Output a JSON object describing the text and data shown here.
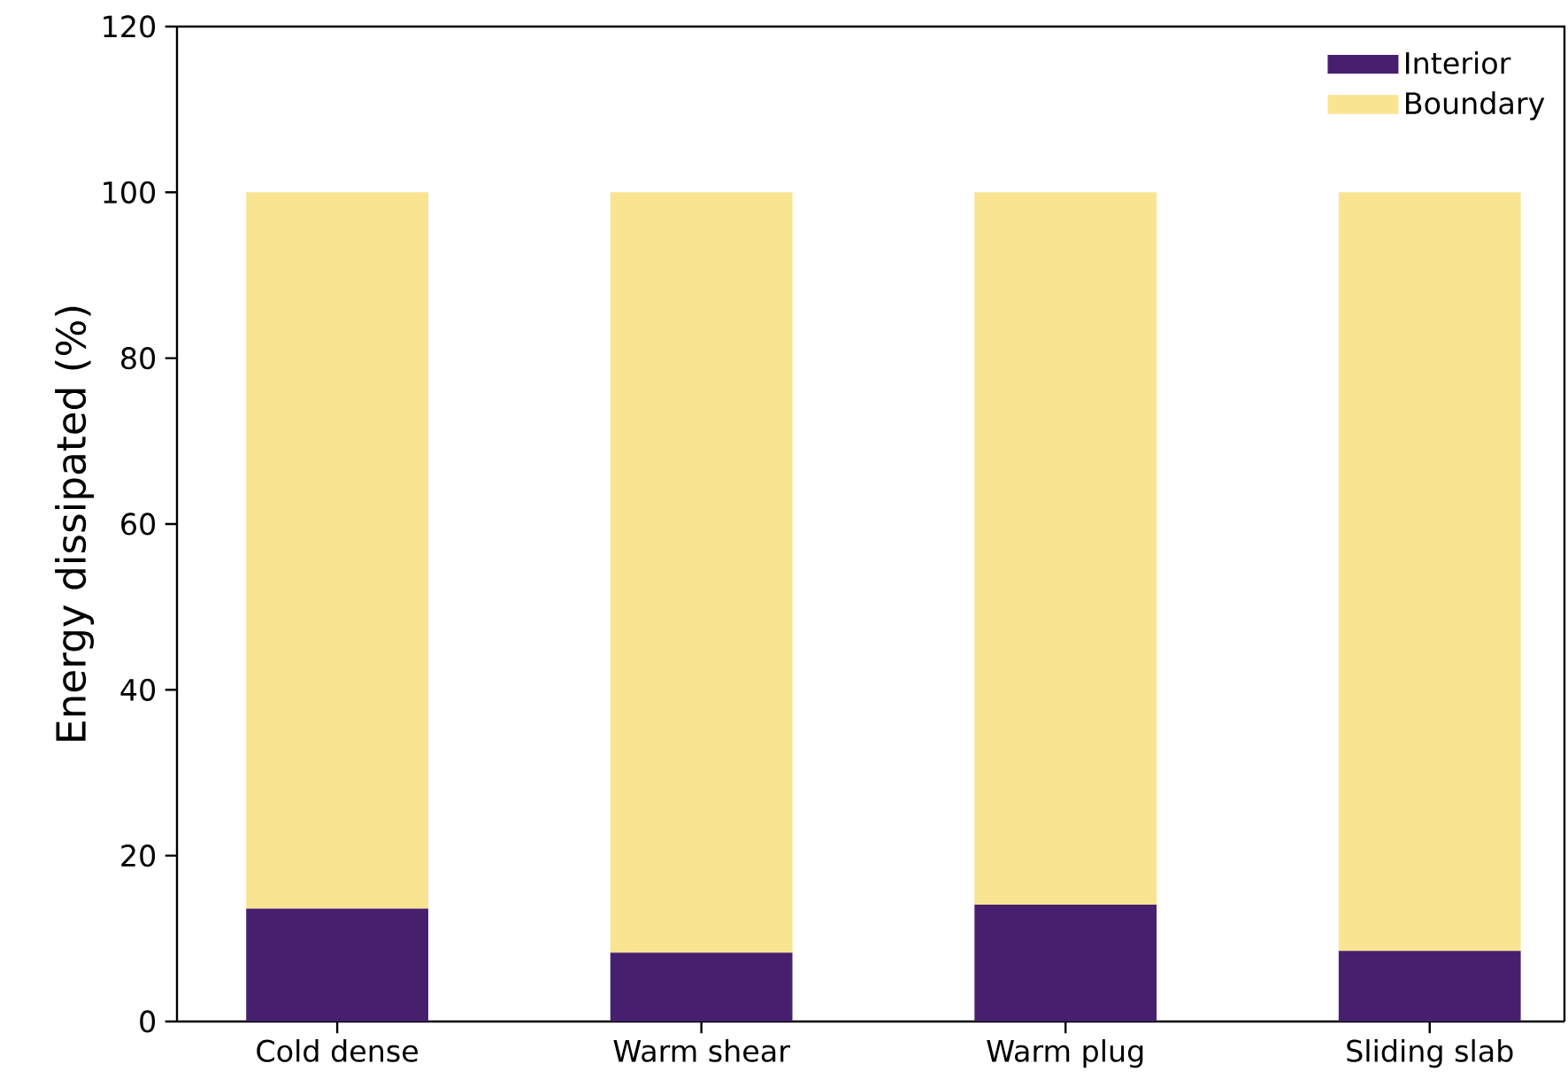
{
  "chart_data": {
    "type": "bar",
    "stacked": true,
    "ylabel": "Energy dissipated (%)",
    "categories": [
      "Cold dense",
      "Warm shear",
      "Warm plug",
      "Sliding slab"
    ],
    "series": [
      {
        "name": "Interior",
        "color": "#46206e",
        "values": [
          13.6,
          8.3,
          14.1,
          8.5
        ]
      },
      {
        "name": "Boundary",
        "color": "#f9e491",
        "values": [
          86.4,
          91.7,
          85.9,
          91.5
        ]
      }
    ],
    "ylim": [
      0,
      120
    ],
    "yticks": [
      0,
      20,
      40,
      60,
      80,
      100,
      120
    ],
    "legend": "top right",
    "grid": false
  }
}
